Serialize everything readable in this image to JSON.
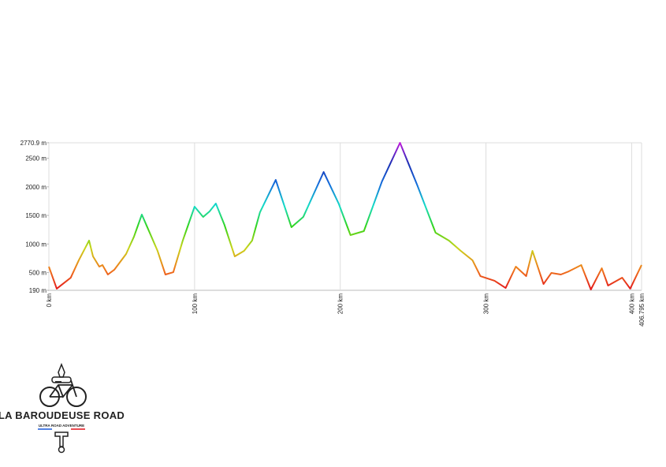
{
  "chart_data": {
    "type": "line",
    "x": [
      0,
      5.4,
      15,
      20.5,
      27.6,
      30.3,
      34.6,
      36.8,
      40.5,
      44.9,
      53,
      58.4,
      63.8,
      69.2,
      74.6,
      80,
      85.4,
      91.9,
      100,
      105.9,
      110.3,
      114.6,
      120.5,
      127.6,
      134,
      139.5,
      144.9,
      155.7,
      166.5,
      174.6,
      188.6,
      198.9,
      207,
      216.2,
      228.6,
      241,
      252.9,
      265.4,
      274.6,
      282.7,
      290.8,
      296.2,
      305.9,
      313.5,
      320.5,
      327.6,
      331.9,
      339.5,
      344.9,
      351.4,
      356.8,
      365.4,
      372,
      379.5,
      383.8,
      393.5,
      399,
      406.795
    ],
    "values": [
      604,
      218,
      410,
      714,
      1060,
      783,
      604,
      632,
      466,
      549,
      825,
      1128,
      1515,
      1197,
      880,
      466,
      507,
      1060,
      1653,
      1473,
      1570,
      1708,
      1335,
      783,
      880,
      1060,
      1556,
      2122,
      1294,
      1473,
      2260,
      1708,
      1156,
      1225,
      2094,
      2771,
      2025,
      1197,
      1060,
      880,
      714,
      438,
      356,
      231,
      604,
      438,
      880,
      300,
      494,
      466,
      521,
      632,
      204,
      576,
      273,
      410,
      218,
      632
    ],
    "color_scale": [
      "#e3141c",
      "#f07a1c",
      "#c9d41a",
      "#33d41a",
      "#14dcc8",
      "#1470dc",
      "#1a2fb4",
      "#c01adc"
    ],
    "xlim": [
      0,
      406.795
    ],
    "ylim": [
      190,
      2770.9
    ],
    "xticks": [
      {
        "value": 0,
        "label": "0 km"
      },
      {
        "value": 100,
        "label": "100 km"
      },
      {
        "value": 200,
        "label": "200 km"
      },
      {
        "value": 300,
        "label": "300 km"
      },
      {
        "value": 400,
        "label": "400 km"
      },
      {
        "value": 406.795,
        "label": "406.795 km"
      }
    ],
    "yticks": [
      {
        "value": 190,
        "label": "190 m"
      },
      {
        "value": 500,
        "label": "500 m"
      },
      {
        "value": 1000,
        "label": "1000 m"
      },
      {
        "value": 1500,
        "label": "1500 m"
      },
      {
        "value": 2000,
        "label": "2000 m"
      },
      {
        "value": 2500,
        "label": "2500 m"
      },
      {
        "value": 2770.9,
        "label": "2770.9 m"
      }
    ],
    "grid": "x"
  },
  "logo": {
    "title": "LA BAROUDEUSE ROAD",
    "subtitle": "ULTRA ROAD ADVENTURE"
  }
}
